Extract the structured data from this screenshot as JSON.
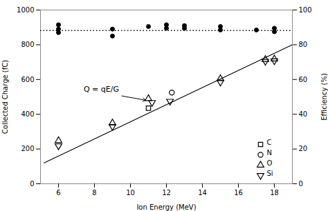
{
  "chart_data": {
    "type": "scatter",
    "xlabel": "Ion Energy (MeV)",
    "ylabel": "Collected Charge (fC)",
    "y2label": "Efficiency (%)",
    "xlim": [
      5,
      19
    ],
    "ylim": [
      0,
      1000
    ],
    "y2lim": [
      0,
      100
    ],
    "xticks": [
      6,
      8,
      10,
      12,
      14,
      16,
      18
    ],
    "yticks": [
      0,
      200,
      400,
      600,
      800,
      1000
    ],
    "y2ticks": [
      0,
      20,
      40,
      60,
      80,
      100
    ],
    "grid": false,
    "legend": "lower right",
    "series": [
      {
        "type": "scatter",
        "marker": "filled-circle",
        "color": "black",
        "x": [
          6,
          6,
          6,
          9,
          9,
          11,
          12,
          12,
          13,
          13,
          15,
          15,
          17,
          18,
          18
        ],
        "values": [
          870,
          890,
          915,
          850,
          890,
          905,
          895,
          915,
          895,
          910,
          885,
          905,
          885,
          875,
          895
        ]
      },
      {
        "type": "hline",
        "line_style": "dotted",
        "color": "black",
        "values": [
          882
        ]
      },
      {
        "type": "line",
        "line_style": "solid",
        "color": "black",
        "x": [
          5.2,
          19.0
        ],
        "values": [
          120,
          800
        ]
      },
      {
        "name": "C",
        "type": "scatter",
        "marker": "open-square",
        "color": "black",
        "x": [
          11
        ],
        "values": [
          435
        ]
      },
      {
        "name": "N",
        "type": "scatter",
        "marker": "open-circle",
        "color": "black",
        "x": [
          12.3
        ],
        "values": [
          525
        ]
      },
      {
        "name": "O",
        "type": "scatter",
        "marker": "open-triangle-up",
        "color": "black",
        "x": [
          6,
          9,
          11,
          15,
          17.5,
          18
        ],
        "values": [
          248,
          350,
          490,
          605,
          715,
          718
        ]
      },
      {
        "name": "Si",
        "type": "scatter",
        "marker": "open-triangle-down",
        "color": "black",
        "x": [
          6,
          9,
          11.2,
          12.2,
          15,
          17.5,
          18
        ],
        "values": [
          218,
          330,
          468,
          475,
          585,
          705,
          708
        ]
      }
    ],
    "annotations": [
      {
        "text": "Q = qE/G",
        "x": 7.4,
        "y": 545,
        "arrow_x": 11.0,
        "arrow_y": 478
      }
    ]
  }
}
